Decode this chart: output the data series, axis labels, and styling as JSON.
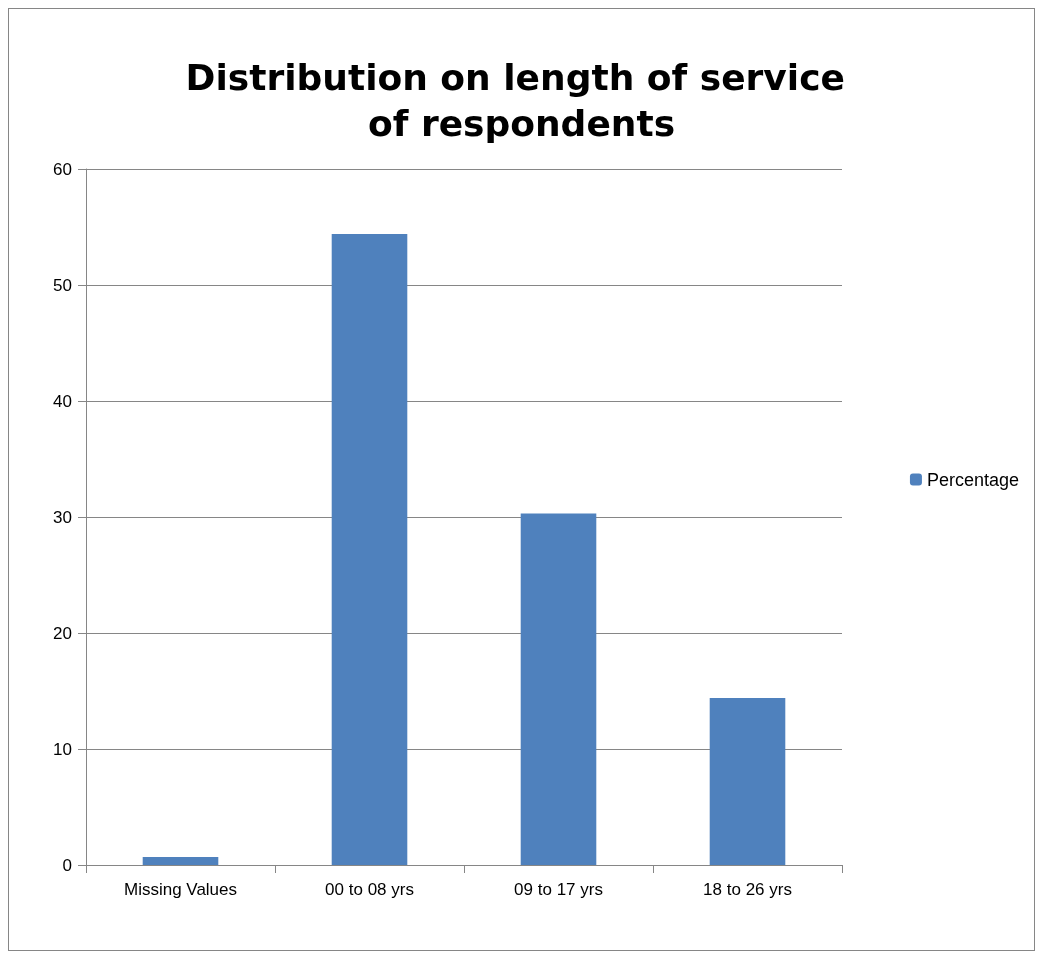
{
  "chart_data": {
    "type": "bar",
    "title": "Distribution on length of service of respondents",
    "categories": [
      "Missing Values",
      "00 to 08 yrs",
      "09 to 17 yrs",
      "18 to 26 yrs"
    ],
    "series": [
      {
        "name": "Percentage",
        "color": "#4f81bd",
        "values": [
          0.7,
          54.4,
          30.3,
          14.4
        ]
      }
    ],
    "ylim": [
      0,
      60
    ],
    "yticks": [
      0,
      10,
      20,
      30,
      40,
      50,
      60
    ],
    "grid": "y",
    "legend": "right"
  }
}
